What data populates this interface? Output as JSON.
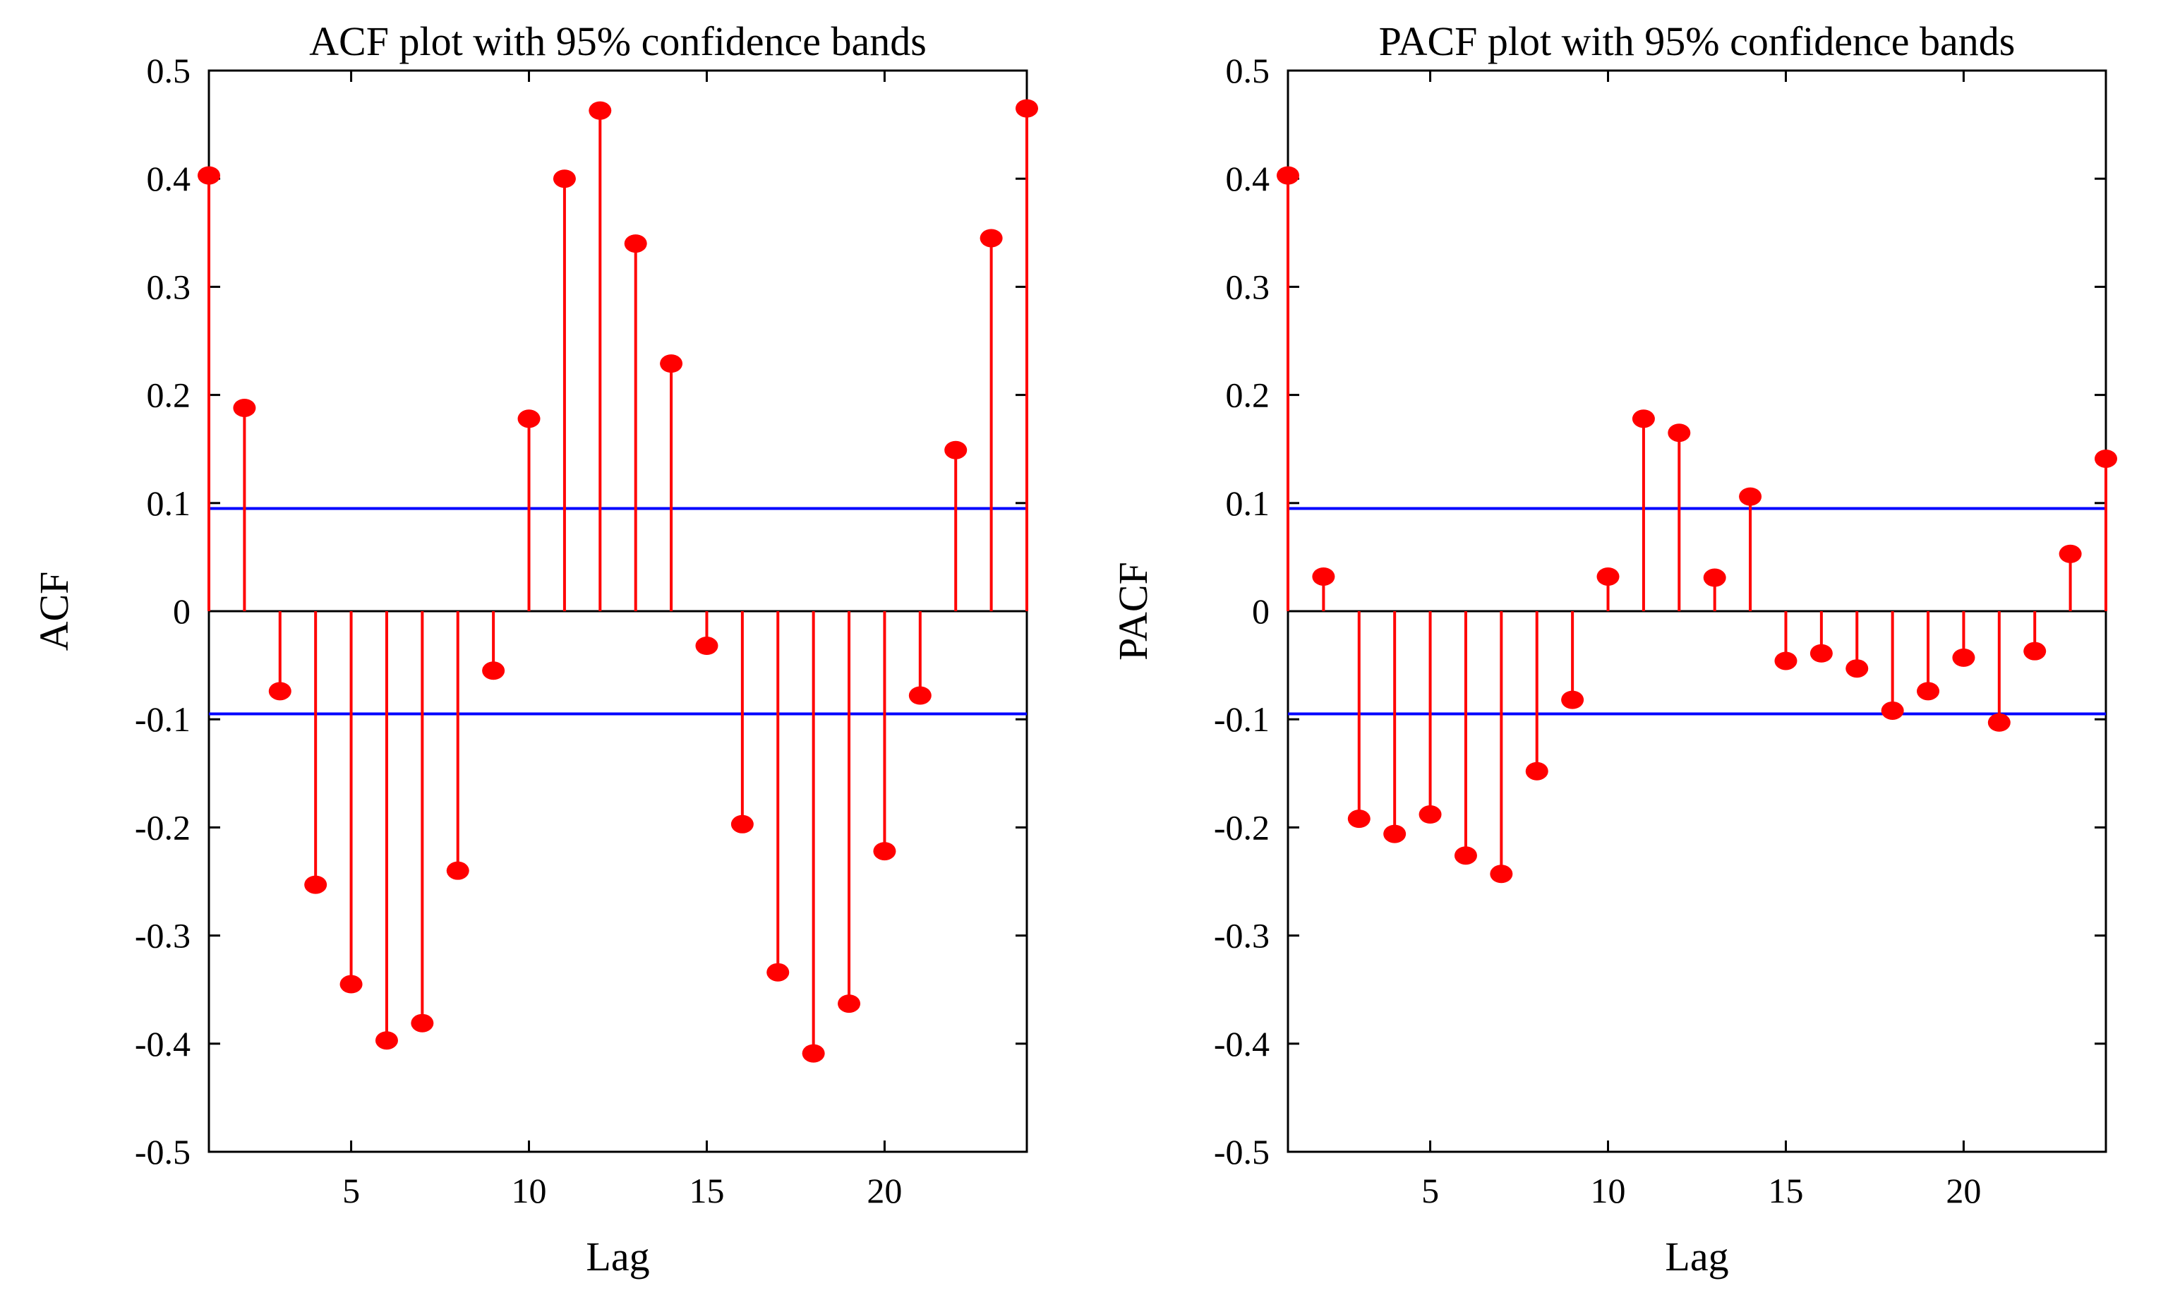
{
  "chart_data": [
    {
      "type": "stem",
      "title": "ACF plot with 95% confidence bands",
      "xlabel": "Lag",
      "ylabel": "ACF",
      "xlim": [
        1,
        24
      ],
      "ylim": [
        -0.5,
        0.5
      ],
      "xticks": [
        5,
        10,
        15,
        20
      ],
      "yticks": [
        0.5,
        0.4,
        0.3,
        0.2,
        0.1,
        0,
        -0.1,
        -0.2,
        -0.3,
        -0.4,
        -0.5
      ],
      "ytick_labels": [
        "0.5",
        "0.4",
        "0.3",
        "0.2",
        "0.1",
        "0",
        "-0.1",
        "-0.2",
        "-0.3",
        "-0.4",
        "-0.5"
      ],
      "confidence_band": 0.095,
      "colors": {
        "stem": "#ff0000",
        "band": "#0000ff",
        "zero_line": "#000000"
      },
      "grid": false,
      "series": [
        {
          "x": [
            1,
            2,
            3,
            4,
            5,
            6,
            7,
            8,
            9,
            10,
            11,
            12,
            13,
            14,
            15,
            16,
            17,
            18,
            19,
            20,
            21,
            22,
            23,
            24
          ],
          "values": [
            0.403,
            0.188,
            -0.074,
            -0.253,
            -0.345,
            -0.397,
            -0.381,
            -0.24,
            -0.055,
            0.178,
            0.4,
            0.463,
            0.34,
            0.229,
            -0.032,
            -0.197,
            -0.334,
            -0.409,
            -0.363,
            -0.222,
            -0.078,
            0.149,
            0.345,
            0.465
          ]
        }
      ]
    },
    {
      "type": "stem",
      "title": "PACF plot with 95% confidence bands",
      "xlabel": "Lag",
      "ylabel": "PACF",
      "xlim": [
        1,
        24
      ],
      "ylim": [
        -0.5,
        0.5
      ],
      "xticks": [
        5,
        10,
        15,
        20
      ],
      "yticks": [
        0.5,
        0.4,
        0.3,
        0.2,
        0.1,
        0,
        -0.1,
        -0.2,
        -0.3,
        -0.4,
        -0.5
      ],
      "ytick_labels": [
        "0.5",
        "0.4",
        "0.3",
        "0.2",
        "0.1",
        "0",
        "-0.1",
        "-0.2",
        "-0.3",
        "-0.4",
        "-0.5"
      ],
      "confidence_band": 0.095,
      "colors": {
        "stem": "#ff0000",
        "band": "#0000ff",
        "zero_line": "#000000"
      },
      "grid": false,
      "series": [
        {
          "x": [
            1,
            2,
            3,
            4,
            5,
            6,
            7,
            8,
            9,
            10,
            11,
            12,
            13,
            14,
            15,
            16,
            17,
            18,
            19,
            20,
            21,
            22,
            23,
            24
          ],
          "values": [
            0.403,
            0.032,
            -0.192,
            -0.206,
            -0.188,
            -0.226,
            -0.243,
            -0.148,
            -0.082,
            0.032,
            0.178,
            0.165,
            0.031,
            0.106,
            -0.046,
            -0.039,
            -0.053,
            -0.092,
            -0.074,
            -0.043,
            -0.103,
            -0.037,
            0.053,
            0.141
          ]
        }
      ]
    }
  ]
}
